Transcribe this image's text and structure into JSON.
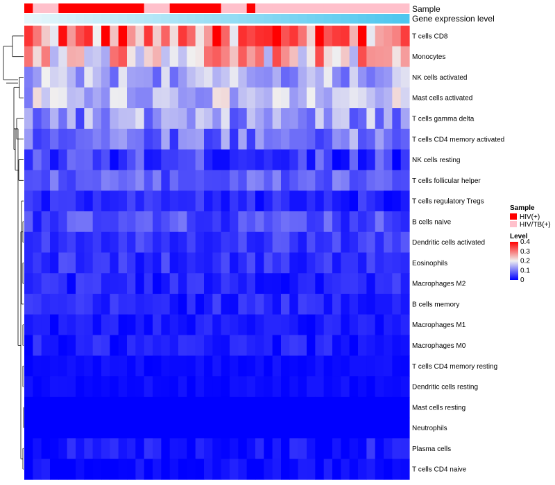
{
  "chart_data": {
    "type": "heatmap",
    "annotation_labels": {
      "sample": "Sample",
      "expression": "Gene expression level"
    },
    "rows": [
      "T cells CD8",
      "Monocytes",
      "NK cells activated",
      "Mast cells activated",
      "T cells gamma delta",
      "T cells CD4 memory activated",
      "NK cells resting",
      "T cells follicular helper",
      "T cells regulatory  Tregs",
      "B cells naive",
      "Dendritic cells activated",
      "Eosinophils",
      "Macrophages M2",
      "B cells memory",
      "Macrophages M1",
      "Macrophages M0",
      "T cells CD4 memory resting",
      "Dendritic cells resting",
      "Mast cells resting",
      "Neutrophils",
      "Plasma cells",
      "T cells CD4 naive"
    ],
    "n_columns": 45,
    "sample_groups": [
      "HIV(+)",
      "HIV/TB(+)"
    ],
    "sample_colors": {
      "HIV(+)": "#ff0000",
      "HIV/TB(+)": "#ffc0cb"
    },
    "sample_sequence": [
      0,
      1,
      1,
      1,
      0,
      0,
      0,
      0,
      0,
      0,
      0,
      0,
      0,
      0,
      1,
      1,
      1,
      0,
      0,
      0,
      0,
      0,
      0,
      1,
      1,
      1,
      0,
      1,
      1,
      1,
      1,
      1,
      1,
      1,
      1,
      1,
      1,
      1,
      1,
      1,
      1,
      1,
      1,
      1,
      1
    ],
    "expression_gradient": [
      "#e6f6fb",
      "#4dc6ee"
    ],
    "row_means": [
      0.3,
      0.24,
      0.14,
      0.16,
      0.12,
      0.1,
      0.05,
      0.08,
      0.03,
      0.06,
      0.05,
      0.04,
      0.03,
      0.03,
      0.02,
      0.02,
      0.01,
      0.01,
      0.0,
      0.0,
      0.02,
      0.01
    ],
    "row_spread": [
      0.12,
      0.1,
      0.06,
      0.06,
      0.07,
      0.06,
      0.05,
      0.04,
      0.03,
      0.04,
      0.03,
      0.03,
      0.03,
      0.03,
      0.02,
      0.03,
      0.01,
      0.01,
      0.0,
      0.0,
      0.03,
      0.02
    ],
    "color_scale": {
      "stops": [
        {
          "value": 0,
          "color": "#0000ff"
        },
        {
          "value": 0.2,
          "color": "#f0f0f0"
        },
        {
          "value": 0.4,
          "color": "#ff0000"
        }
      ],
      "min": 0,
      "max": 0.4
    },
    "legend": {
      "sample_title": "Sample",
      "sample_items": [
        "HIV(+)",
        "HIV/TB(+)"
      ],
      "level_title": "Level",
      "level_ticks": [
        "0.4",
        "0.3",
        "0.2",
        "0.1",
        "0"
      ],
      "level_tick_values": [
        0.4,
        0.3,
        0.2,
        0.1,
        0
      ]
    }
  }
}
